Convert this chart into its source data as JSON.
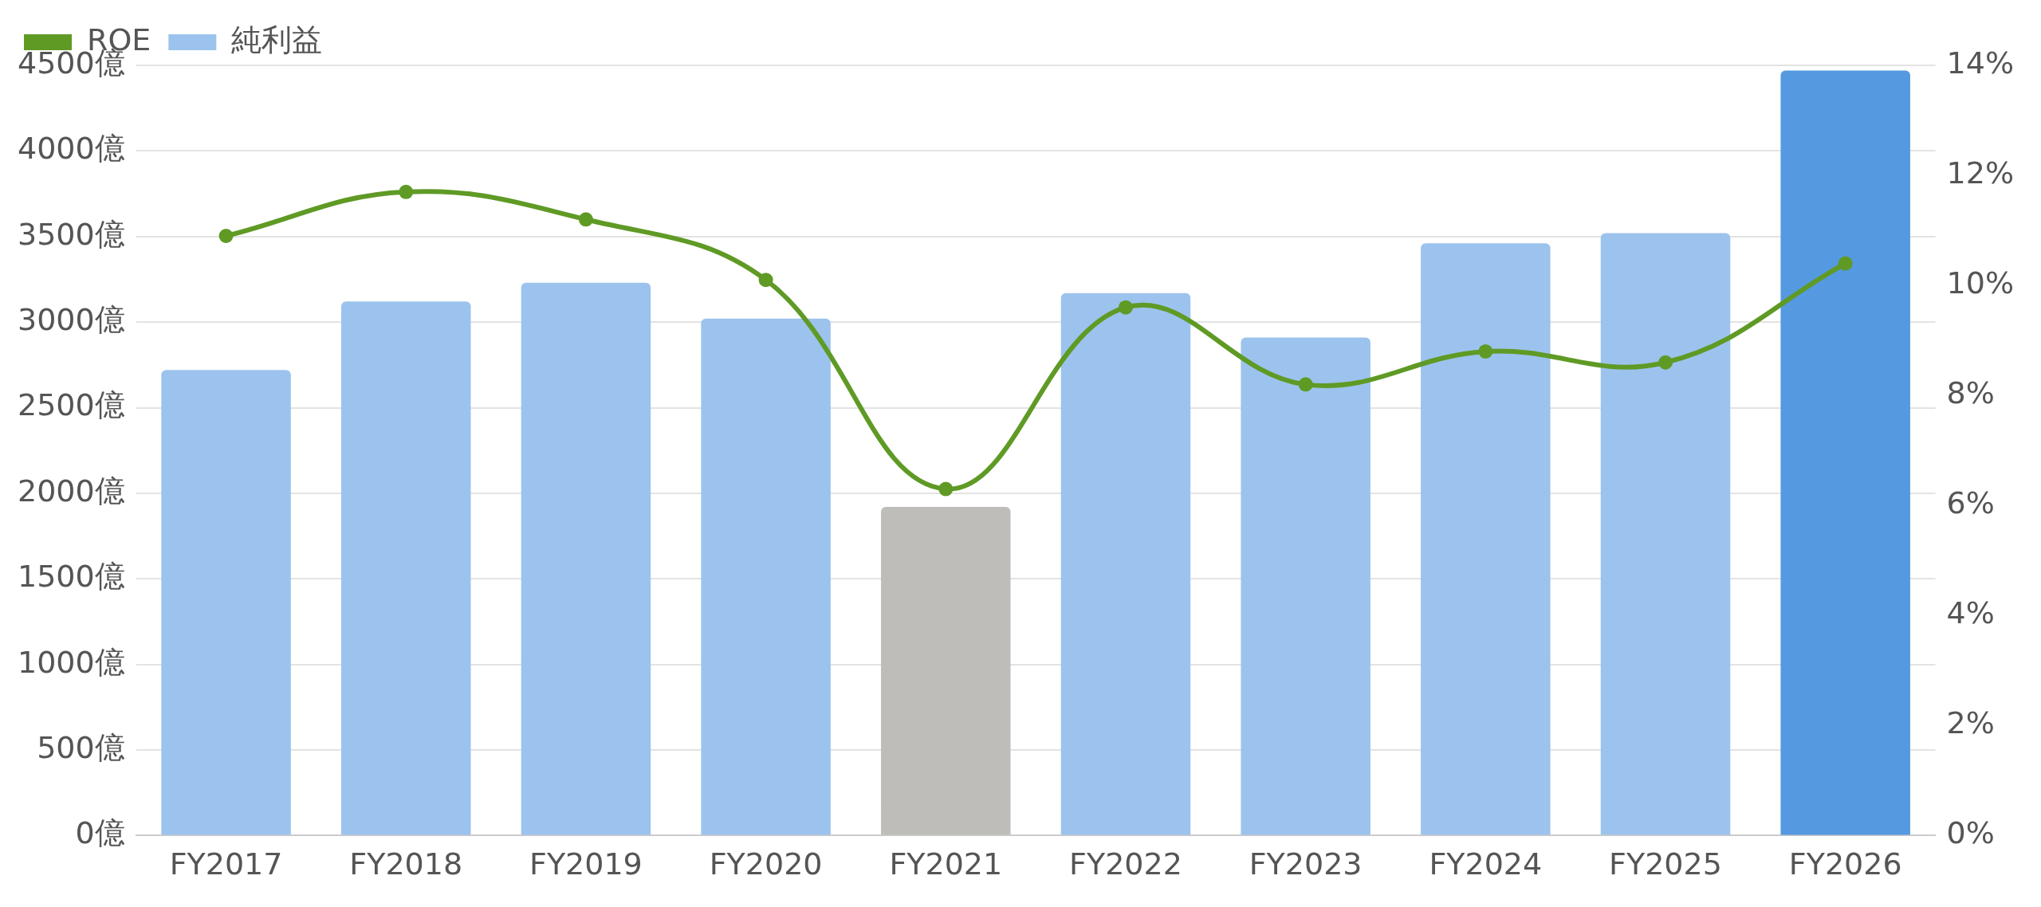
{
  "chart_data": {
    "type": "bar",
    "categories": [
      "FY2017",
      "FY2018",
      "FY2019",
      "FY2020",
      "FY2021",
      "FY2022",
      "FY2023",
      "FY2024",
      "FY2025",
      "FY2026"
    ],
    "series": [
      {
        "name": "ROE",
        "type": "line",
        "axis": "y2",
        "color": "#5f9a25",
        "values": [
          10.9,
          11.7,
          11.2,
          10.1,
          6.3,
          9.6,
          8.2,
          8.8,
          8.6,
          10.4
        ]
      },
      {
        "name": "純利益",
        "color": "#9cc3ed",
        "colors": [
          "#9cc3ed",
          "#9cc3ed",
          "#9cc3ed",
          "#9cc3ed",
          "#bebdb9",
          "#9cc3ed",
          "#9cc3ed",
          "#9cc3ed",
          "#9cc3ed",
          "#5599e0"
        ],
        "values": [
          2720,
          3120,
          3230,
          3020,
          1920,
          3170,
          2910,
          3460,
          3520,
          4470
        ]
      }
    ],
    "ylim": [
      0,
      4500
    ],
    "yticks": [
      {
        "value": 0,
        "label": "0億"
      },
      {
        "value": 500,
        "label": "500億"
      },
      {
        "value": 1000,
        "label": "1000億"
      },
      {
        "value": 1500,
        "label": "1500億"
      },
      {
        "value": 2000,
        "label": "2000億"
      },
      {
        "value": 2500,
        "label": "2500億"
      },
      {
        "value": 3000,
        "label": "3000億"
      },
      {
        "value": 3500,
        "label": "3500億"
      },
      {
        "value": 4000,
        "label": "4000億"
      },
      {
        "value": 4500,
        "label": "4500億"
      }
    ],
    "y2lim": [
      0,
      14
    ],
    "y2ticks": [
      {
        "value": 0,
        "label": "0%"
      },
      {
        "value": 2,
        "label": "2%"
      },
      {
        "value": 4,
        "label": "4%"
      },
      {
        "value": 6,
        "label": "6%"
      },
      {
        "value": 8,
        "label": "8%"
      },
      {
        "value": 10,
        "label": "10%"
      },
      {
        "value": 12,
        "label": "12%"
      },
      {
        "value": 14,
        "label": "14%"
      }
    ],
    "grid": "y",
    "legend": "top left",
    "marker": "circle"
  }
}
